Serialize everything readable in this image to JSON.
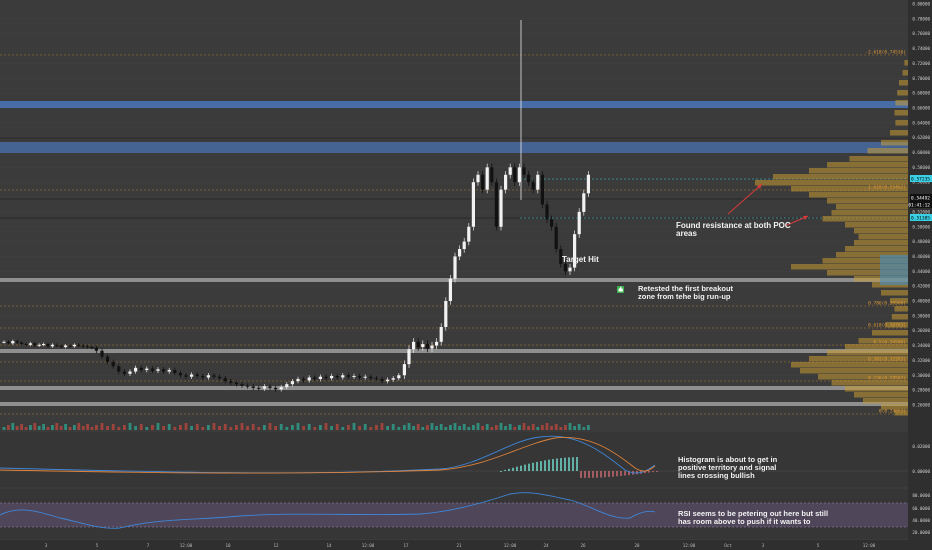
{
  "colors": {
    "background": "#3b3b3b",
    "panel_bg": "#363636",
    "up_candle": "#f2f2f2",
    "down_candle": "#111111",
    "resistance_band": "#4a73b3",
    "support_band": "#8f8f8f",
    "fib_line": "#d08d2a",
    "dotted_line": "#a89a82",
    "volume_profile": "#c99a32",
    "volume_profile_alt": "#4a8fc3",
    "volume_up": "#2f9c8a",
    "volume_down": "#b0463d",
    "macd_line": "#3f86d8",
    "signal_line": "#e0823a",
    "rsi_line": "#3f86d8",
    "rsi_band": "#6f5a86",
    "cyan_tag": "#3ad1e6"
  },
  "price_axis": {
    "ticks": [
      "0.80000",
      "0.78000",
      "0.76000",
      "0.74000",
      "0.72000",
      "0.70000",
      "0.68000",
      "0.66000",
      "0.64000",
      "0.62000",
      "0.60000",
      "0.58000",
      "0.56000",
      "0.54000",
      "0.52000",
      "0.50000",
      "0.48000",
      "0.46000",
      "0.44000",
      "0.42000",
      "0.40000",
      "0.38000",
      "0.36000",
      "0.34000",
      "0.32000",
      "0.30000",
      "0.28000",
      "0.26000"
    ],
    "current_price": "0.54492",
    "countdown": "01:41:12",
    "cyan_tag_top": "0.57235",
    "cyan_tag_bottom": "0.51385"
  },
  "fib_labels": {
    "f2618": "-2.618(0.74536)",
    "f1618": "1.618(0.55462)",
    "f0786": "0.786(0.39566)",
    "f0618": "0.618(0.36763)",
    "f05": "0.5(0.34508)",
    "f0382": "0.382(0.32283)",
    "f0236": "0.236(0.29587)",
    "f0": "0(0.24853)"
  },
  "macd_axis": {
    "ticks": [
      "0.02000",
      "0.00000"
    ]
  },
  "rsi_axis": {
    "ticks": [
      "80.0000",
      "60.0000",
      "40.0000",
      "20.0000"
    ]
  },
  "time_axis": {
    "labels": [
      "3",
      "5",
      "7",
      "12:00",
      "10",
      "12",
      "14",
      "12:00",
      "17",
      "21",
      "12:00",
      "24",
      "26",
      "28",
      "12:00",
      "Oct",
      "3",
      "5",
      "12:00"
    ]
  },
  "annotations": {
    "resistance": "Found resistance at both POC\nareas",
    "target": "Target Hit",
    "retest": "Retested the first breakout\nzone from tehe big run-up",
    "histogram": "Histogram is about to get in\npositive territory and signal\nlines crossing bullish",
    "rsi": "RSI seems to be petering out here but still\nhas room above to push if it wants to"
  },
  "icons": {
    "thumbs_up": "thumbs-up-icon",
    "red_arrow_1": "arrow-up-right-icon",
    "red_arrow_2": "arrow-up-right-icon"
  }
}
